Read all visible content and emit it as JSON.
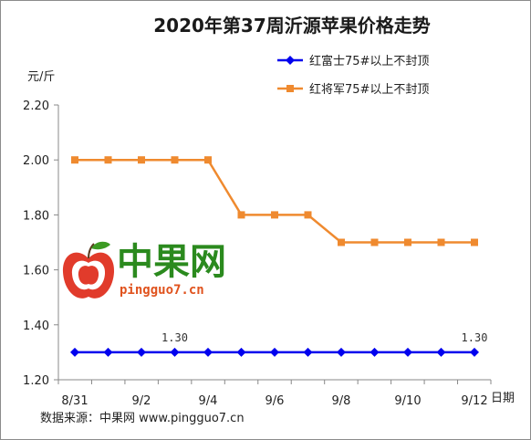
{
  "chart_data": {
    "type": "line",
    "title": "2020年第37周沂源苹果价格走势",
    "ylabel": "元/斤",
    "xlabel": "日期",
    "ylim": [
      1.2,
      2.2
    ],
    "yticks": [
      "1.20",
      "1.40",
      "1.60",
      "1.80",
      "2.00",
      "2.20"
    ],
    "xtick_labels": [
      "8/31",
      "9/2",
      "9/4",
      "9/6",
      "9/8",
      "9/10",
      "9/12"
    ],
    "x": [
      "8/31",
      "9/1",
      "9/2",
      "9/3",
      "9/4",
      "9/5",
      "9/6",
      "9/7",
      "9/8",
      "9/9",
      "9/10",
      "9/11",
      "9/12"
    ],
    "series": [
      {
        "name": "红富士75#以上不封顶",
        "color": "#0000ee",
        "marker": "diamond",
        "values": [
          1.3,
          1.3,
          1.3,
          1.3,
          1.3,
          1.3,
          1.3,
          1.3,
          1.3,
          1.3,
          1.3,
          1.3,
          1.3
        ]
      },
      {
        "name": "红将军75#以上不封顶",
        "color": "#ef8a2f",
        "marker": "square",
        "values": [
          2.0,
          2.0,
          2.0,
          2.0,
          2.0,
          1.8,
          1.8,
          1.8,
          1.7,
          1.7,
          1.7,
          1.7,
          1.7
        ]
      }
    ],
    "data_labels": [
      {
        "text": "1.30",
        "series": 0,
        "x": "9/3"
      },
      {
        "text": "1.30",
        "series": 0,
        "x": "9/12"
      }
    ],
    "legend_position": "top-right",
    "grid": false
  },
  "watermark": {
    "brand": "中果网",
    "site": "pingguo7.cn",
    "logo_icon": "apple-logo-icon",
    "brand_color": "#2b8a1e",
    "site_color": "#e0531e",
    "logo_color": "#e13b2b"
  },
  "footer": {
    "source": "数据来源：中果网 www.pingguo7.cn"
  }
}
